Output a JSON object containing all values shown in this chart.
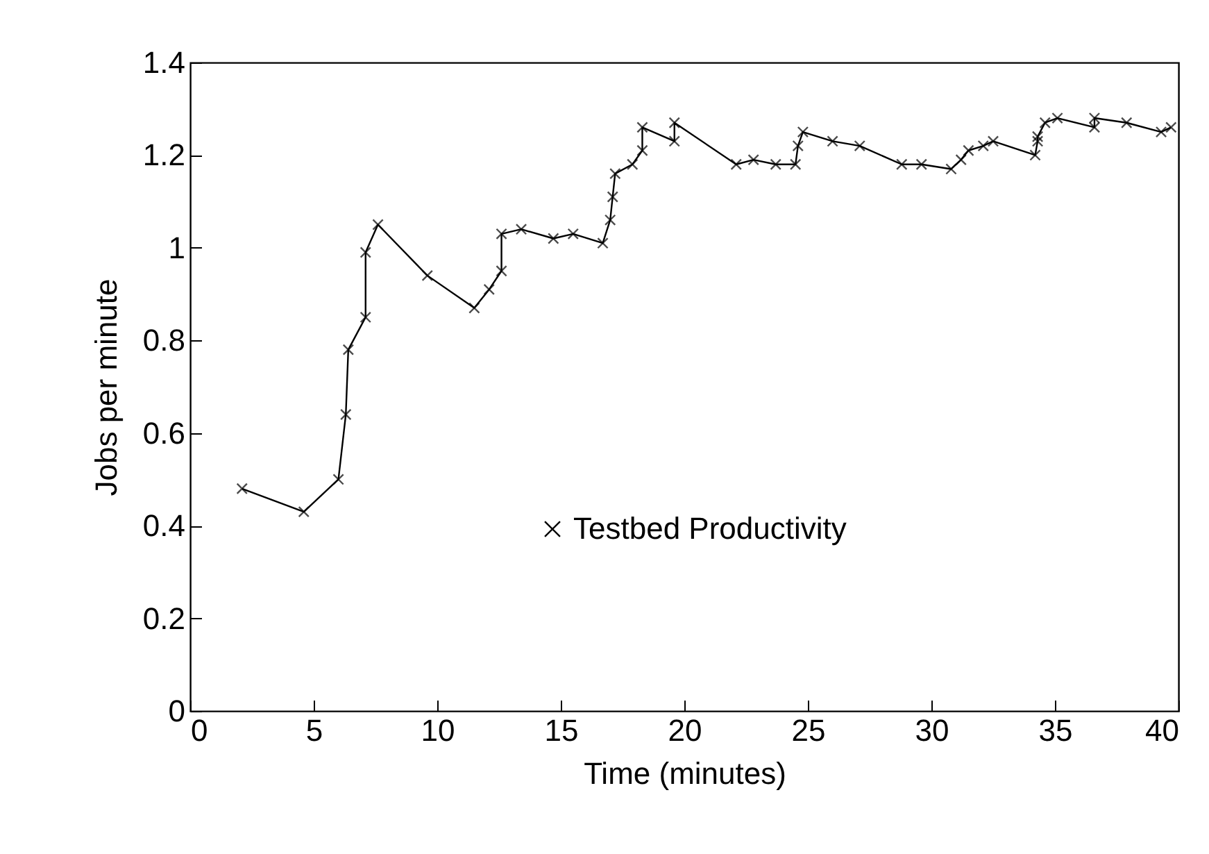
{
  "chart_data": {
    "type": "line",
    "xlabel": "Time (minutes)",
    "ylabel": "Jobs per minute",
    "x": [
      2.1,
      4.6,
      6.0,
      6.3,
      6.4,
      7.1,
      7.1,
      7.6,
      9.6,
      11.5,
      12.1,
      12.6,
      12.6,
      13.4,
      14.7,
      15.5,
      16.7,
      17.0,
      17.1,
      17.2,
      17.9,
      18.3,
      18.3,
      19.6,
      19.6,
      22.1,
      22.8,
      23.7,
      24.5,
      24.6,
      24.8,
      26.0,
      27.1,
      28.8,
      29.6,
      30.8,
      31.2,
      31.5,
      32.1,
      32.5,
      34.2,
      34.3,
      34.3,
      34.6,
      35.1,
      36.6,
      36.6,
      37.9,
      39.3,
      39.7
    ],
    "series": [
      {
        "name": "Testbed Productivity",
        "color": "#000000",
        "values": [
          0.48,
          0.43,
          0.5,
          0.64,
          0.78,
          0.85,
          0.99,
          1.05,
          0.94,
          0.87,
          0.91,
          0.95,
          1.03,
          1.04,
          1.02,
          1.03,
          1.01,
          1.06,
          1.11,
          1.16,
          1.18,
          1.21,
          1.26,
          1.23,
          1.27,
          1.18,
          1.19,
          1.18,
          1.18,
          1.22,
          1.25,
          1.23,
          1.22,
          1.18,
          1.18,
          1.17,
          1.19,
          1.21,
          1.22,
          1.23,
          1.2,
          1.23,
          1.24,
          1.27,
          1.28,
          1.26,
          1.28,
          1.27,
          1.25,
          1.26
        ]
      }
    ],
    "xlim": [
      0,
      40
    ],
    "xticks": [
      0,
      5,
      10,
      15,
      20,
      25,
      30,
      35,
      40
    ],
    "ylim": [
      0,
      1.4
    ],
    "yticks": [
      0,
      0.2,
      0.4,
      0.6,
      0.8,
      1,
      1.2,
      1.4
    ],
    "legend": "right",
    "marker": "cross"
  }
}
